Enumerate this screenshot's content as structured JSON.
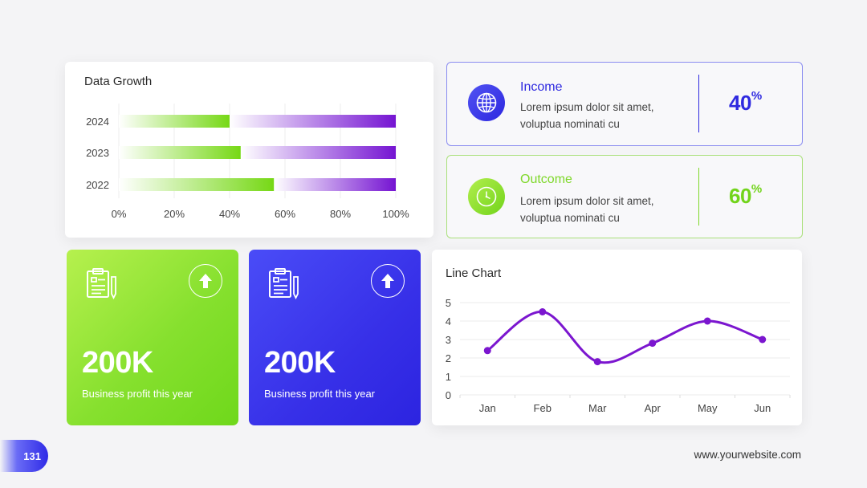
{
  "data_growth": {
    "title": "Data Growth",
    "chart_data": {
      "type": "bar",
      "orientation": "horizontal",
      "categories": [
        "2024",
        "2023",
        "2022"
      ],
      "series": [
        {
          "values": [
            40,
            44,
            56
          ],
          "color": "#7ad91c"
        },
        {
          "values": [
            100,
            100,
            100
          ],
          "color": "#7a18d6"
        }
      ],
      "xticks": [
        "0%",
        "20%",
        "40%",
        "60%",
        "80%",
        "100%"
      ],
      "xlim": [
        0,
        100
      ],
      "grid": true
    }
  },
  "income": {
    "label": "Income",
    "text": "Lorem ipsum dolor sit amet, voluptua nominati cu",
    "value": "40",
    "unit": "%",
    "icon": "globe-icon",
    "color": "#2f2ae0"
  },
  "outcome": {
    "label": "Outcome",
    "text": "Lorem ipsum dolor sit amet, voluptua nominati cu",
    "value": "60",
    "unit": "%",
    "icon": "clock-icon",
    "color": "#72d41b"
  },
  "tiles": [
    {
      "value": "200K",
      "caption": "Business profit this year",
      "icon": "clipboard-icon",
      "action_icon": "arrow-up-icon"
    },
    {
      "value": "200K",
      "caption": "Business profit this year",
      "icon": "clipboard-icon",
      "action_icon": "arrow-up-icon"
    }
  ],
  "line_chart": {
    "title": "Line Chart",
    "chart_data": {
      "type": "line",
      "categories": [
        "Jan",
        "Feb",
        "Mar",
        "Apr",
        "May",
        "Jun"
      ],
      "series": [
        {
          "values": [
            2.4,
            4.5,
            1.8,
            2.8,
            4.0,
            3.0
          ],
          "color": "#7b16cf",
          "smooth": true
        }
      ],
      "yticks": [
        "0",
        "1",
        "2",
        "3",
        "4",
        "5"
      ],
      "ylim": [
        0,
        5
      ],
      "grid": true
    }
  },
  "footer": {
    "page_number": "131",
    "website": "www.yourwebsite.com"
  }
}
